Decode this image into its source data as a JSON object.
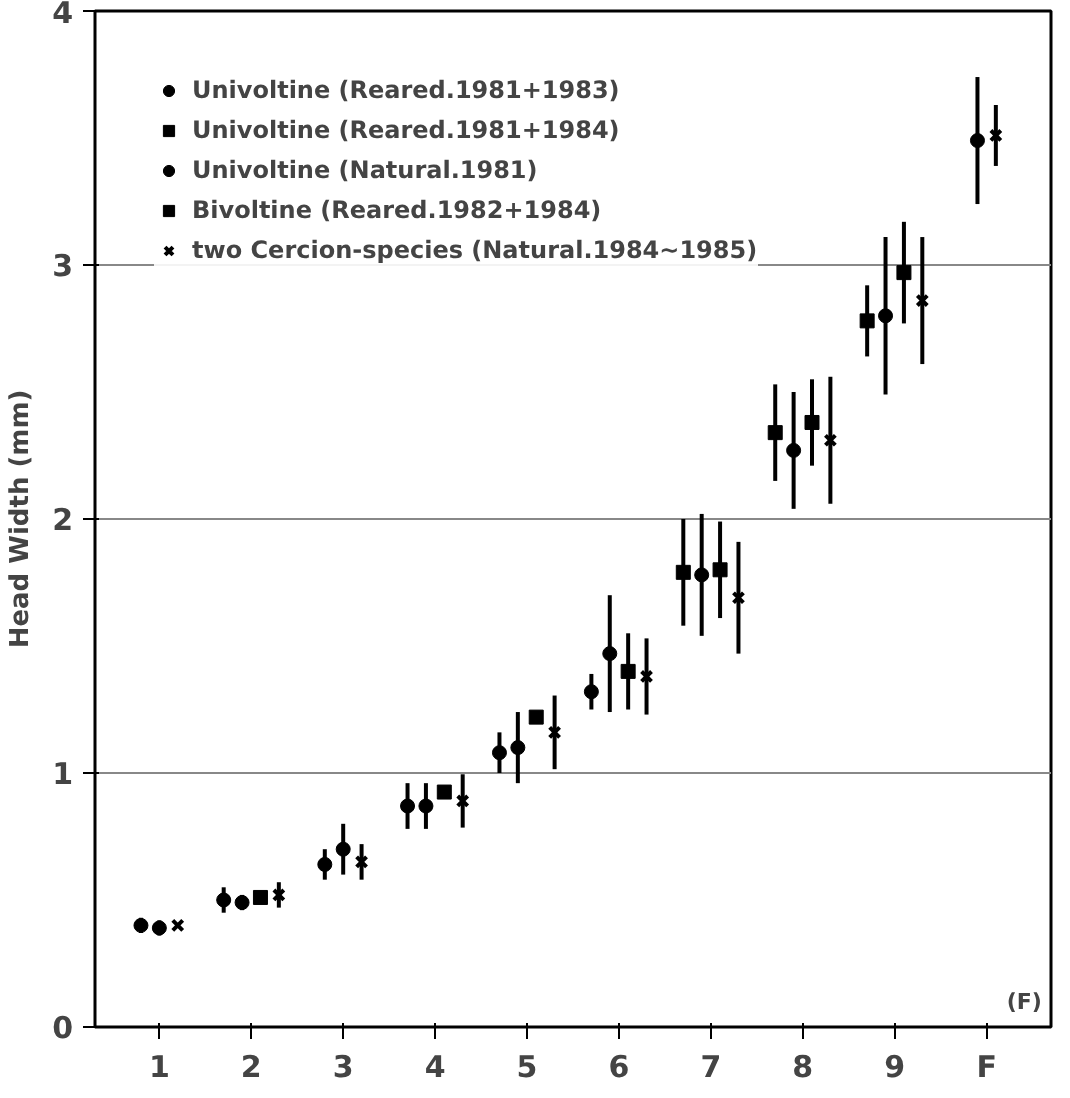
{
  "chart_data": {
    "type": "scatter",
    "ylabel": "Head Width (mm)",
    "categories": [
      "1",
      "2",
      "3",
      "4",
      "5",
      "6",
      "7",
      "8",
      "9",
      "F"
    ],
    "ylim": [
      0,
      4
    ],
    "yticks": [
      0,
      1,
      2,
      3,
      4
    ],
    "grid": "y",
    "legend": "top left",
    "series": [
      {
        "name": "Univoltine (Reared.1981+1983)",
        "color": "#000000",
        "marker": "circle",
        "values": [
          0.4,
          0.5,
          0.64,
          0.87,
          1.08,
          1.32,
          null,
          null,
          null,
          null
        ],
        "errors": [
          0.03,
          0.05,
          0.06,
          0.09,
          0.08,
          0.07,
          null,
          null,
          null,
          null
        ]
      },
      {
        "name": "Univoltine (Reared.1981+1984)",
        "color": "#000000",
        "marker": "square",
        "values": [
          null,
          null,
          null,
          null,
          null,
          null,
          1.79,
          2.34,
          2.78,
          null
        ],
        "errors": [
          null,
          null,
          null,
          null,
          null,
          null,
          0.21,
          0.19,
          0.14,
          null
        ]
      },
      {
        "name": "Univoltine (Natural.1981)",
        "color": "#000000",
        "marker": "circle",
        "values": [
          0.39,
          0.49,
          0.7,
          0.87,
          1.1,
          1.47,
          1.78,
          2.27,
          2.8,
          3.49
        ],
        "errors": [
          0.03,
          0.03,
          0.1,
          0.09,
          0.14,
          0.23,
          0.24,
          0.23,
          0.31,
          0.25
        ]
      },
      {
        "name": "Bivoltine (Reared.1982+1984)",
        "color": "#000000",
        "marker": "square",
        "values": [
          null,
          0.51,
          null,
          0.925,
          1.22,
          1.4,
          1.8,
          2.38,
          2.97,
          null
        ],
        "errors": [
          null,
          null,
          null,
          null,
          null,
          0.15,
          0.19,
          0.17,
          0.2,
          null
        ]
      },
      {
        "name": "two Cercion-species (Natural.1984~1985)",
        "color": "#000000",
        "marker": "cross",
        "values": [
          0.4,
          0.52,
          0.65,
          0.89,
          1.16,
          1.38,
          1.69,
          2.31,
          2.86,
          3.51
        ],
        "errors": [
          null,
          0.05,
          0.07,
          0.105,
          0.145,
          0.15,
          0.22,
          0.25,
          0.25,
          0.12
        ]
      }
    ],
    "annotations": [
      "(F)"
    ]
  }
}
